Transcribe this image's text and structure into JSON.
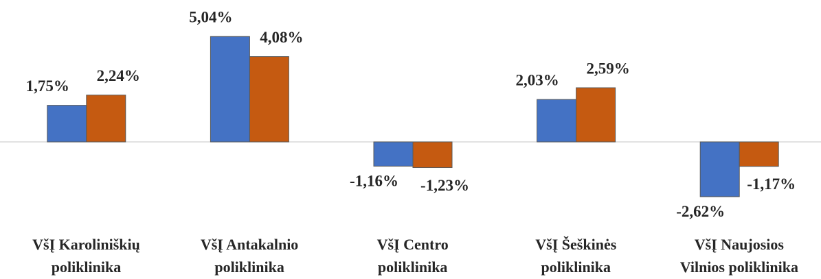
{
  "chart_data": {
    "type": "bar",
    "categories": [
      "VšĮ Karoliniškių\npoliklinika",
      "VšĮ Antakalnio\npoliklinika",
      "VšĮ Centro\npoliklinika",
      "VšĮ Šeškinės\npoliklinika",
      "VšĮ Naujosios\nVilnios poliklinika"
    ],
    "series": [
      {
        "color": "#4472c4",
        "values": [
          1.75,
          5.04,
          -1.16,
          2.03,
          -2.62
        ],
        "value_labels": [
          "1,75%",
          "5,04%",
          "-1,16%",
          "2,03%",
          "-2,62%"
        ]
      },
      {
        "color": "#c55a11",
        "values": [
          2.24,
          4.08,
          -1.23,
          2.59,
          -1.17
        ],
        "value_labels": [
          "2,24%",
          "4,08%",
          "-1,23%",
          "2,59%",
          "-1,17%"
        ]
      }
    ],
    "ylim": [
      -4,
      6
    ]
  }
}
